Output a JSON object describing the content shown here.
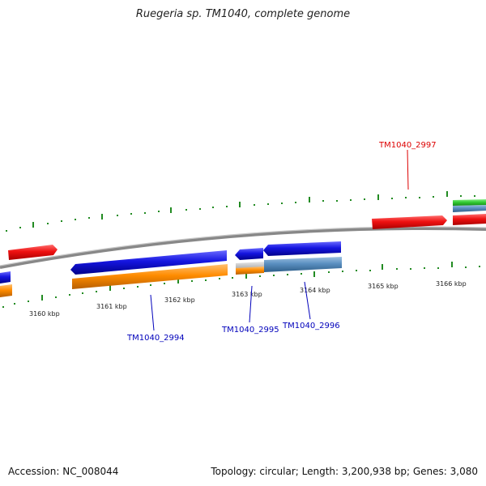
{
  "title": "Ruegeria sp. TM1040, complete genome",
  "footer": {
    "accession": "Accession: NC_008044",
    "summary": "Topology: circular; Length: 3,200,938 bp; Genes: 3,080"
  },
  "kbp_ticks": [
    "3160 kbp",
    "3161 kbp",
    "3162 kbp",
    "3163 kbp",
    "3164 kbp",
    "3165 kbp",
    "3166 kbp"
  ],
  "gene_labels": [
    {
      "name": "TM1040_2997",
      "color": "#dd0000"
    },
    {
      "name": "TM1040_2994",
      "color": "#0000bb"
    },
    {
      "name": "TM1040_2995",
      "color": "#0000bb"
    },
    {
      "name": "TM1040_2996",
      "color": "#0000bb"
    }
  ],
  "colors": {
    "forward_gene": "#ee1111",
    "reverse_gene": "#1515e0",
    "cds_orange": "#ff8c00",
    "cds_steel": "#5a8fc0",
    "other_green": "#33cc33",
    "tick_green": "#228b22",
    "backbone": "#888888"
  }
}
